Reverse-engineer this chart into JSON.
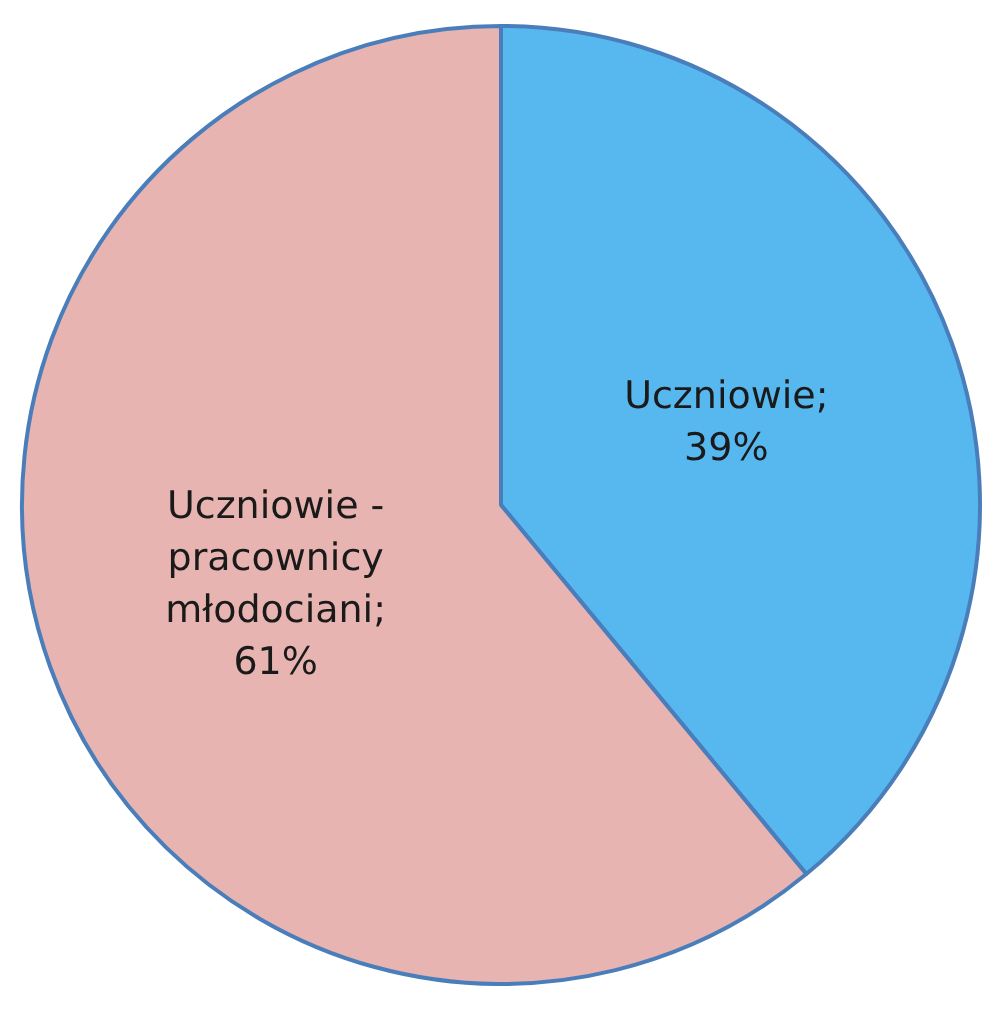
{
  "chart_data": {
    "type": "pie",
    "categories": [
      null,
      null
    ],
    "values": [
      39,
      61
    ],
    "colors": [
      "#57b8f0",
      "#e8b4b2"
    ],
    "value_labels": [
      "Uczniowie; 39%",
      "Uczniowie - pracownicy młodociani; 61%"
    ],
    "legend": false
  }
}
